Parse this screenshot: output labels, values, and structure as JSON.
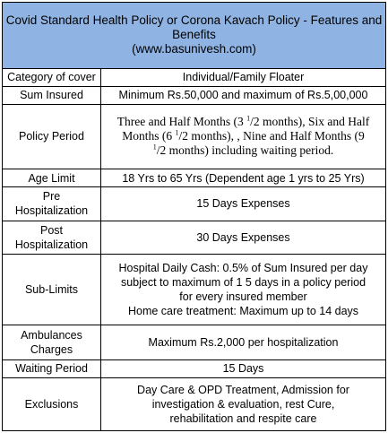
{
  "header": {
    "title_line1": "Covid Standard Health Policy or Corona Kavach Policy - Features and",
    "title_line2": "Benefits",
    "website": "(www.basunivesh.com)"
  },
  "rows": {
    "category": {
      "label": "Category of cover",
      "value": "Individual/Family Floater"
    },
    "sum_insured": {
      "label": "Sum Insured",
      "value": "Minimum Rs.50,000 and maximum of Rs.5,00,000"
    },
    "policy_period": {
      "label": "Policy Period",
      "line1_a": "Three and Half Months (3 ",
      "line1_sup": "1",
      "line1_b": "/2 months), Six and Half",
      "line2_a": "Months (6 ",
      "line2_sup": "1",
      "line2_b": "/2 months), , Nine and Half Months (9",
      "line3_sup": "1",
      "line3_b": "/2 months) including waiting period."
    },
    "age_limit": {
      "label": "Age Limit",
      "value": "18 Yrs to 65 Yrs (Dependent age 1 yrs to 25 Yrs)"
    },
    "pre_hosp": {
      "label_line1": "Pre",
      "label_line2": "Hospitalization",
      "value": "15 Days Expenses"
    },
    "post_hosp": {
      "label_line1": "Post",
      "label_line2": "Hospitalization",
      "value": "30 Days Expenses"
    },
    "sub_limits": {
      "label": "Sub-Limits",
      "line1": "Hospital Daily Cash: 0.5% of Sum Insured per day",
      "line2": "subject to maximum of 1 5 days in a policy period",
      "line3": "for every insured member",
      "line4": "Home care treatment: Maximum up to 14 days"
    },
    "ambulance": {
      "label_line1": "Ambulances",
      "label_line2": "Charges",
      "value": "Maximum Rs.2,000 per hospitalization"
    },
    "waiting": {
      "label": "Waiting Period",
      "value": "15 Days"
    },
    "exclusions": {
      "label": "Exclusions",
      "line1": "Day Care & OPD Treatment, Admission for",
      "line2": "investigation & evaluation, rest Cure,",
      "line3": "rehabilitation and respite care"
    }
  }
}
